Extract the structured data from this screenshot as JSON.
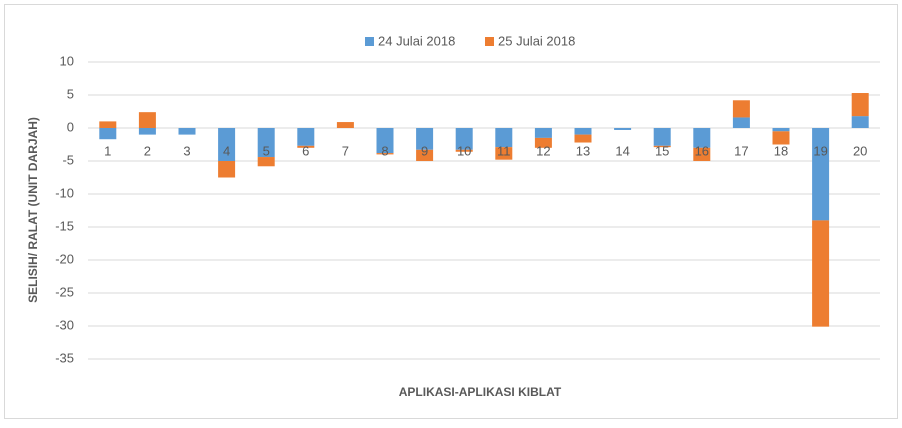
{
  "chart_data": {
    "type": "stacked_bar",
    "xlabel": "APLIKASI-APLIKASI KIBLAT",
    "ylabel": "SELISIH/ RALAT (UNIT DARJAH)",
    "categories": [
      "1",
      "2",
      "3",
      "4",
      "5",
      "6",
      "7",
      "8",
      "9",
      "10",
      "11",
      "12",
      "13",
      "14",
      "15",
      "16",
      "17",
      "18",
      "19",
      "20"
    ],
    "series": [
      {
        "name": "24 Julai 2018",
        "color": "#5b9bd5",
        "values": [
          -1.7,
          -1,
          -1,
          -5,
          -4.4,
          -2.7,
          0,
          -3.8,
          -3.3,
          -3.3,
          -2.9,
          -1.5,
          -1,
          -0.3,
          -2.7,
          -3,
          1.6,
          -0.5,
          -14,
          1.8
        ]
      },
      {
        "name": "25 Julai 2018",
        "color": "#ed7d31",
        "values": [
          1,
          2.4,
          0,
          -2.5,
          -1.4,
          -0.3,
          0.9,
          -0.2,
          -1.7,
          -0.3,
          -1.9,
          -1.5,
          -1.2,
          0,
          -0.2,
          -2,
          2.6,
          -2,
          -16.1,
          3.5
        ]
      }
    ],
    "ylim": [
      -35,
      10
    ],
    "yticks": [
      10,
      5,
      0,
      -5,
      -10,
      -15,
      -20,
      -25,
      -30,
      -35
    ],
    "grid": true,
    "legend": "top"
  }
}
